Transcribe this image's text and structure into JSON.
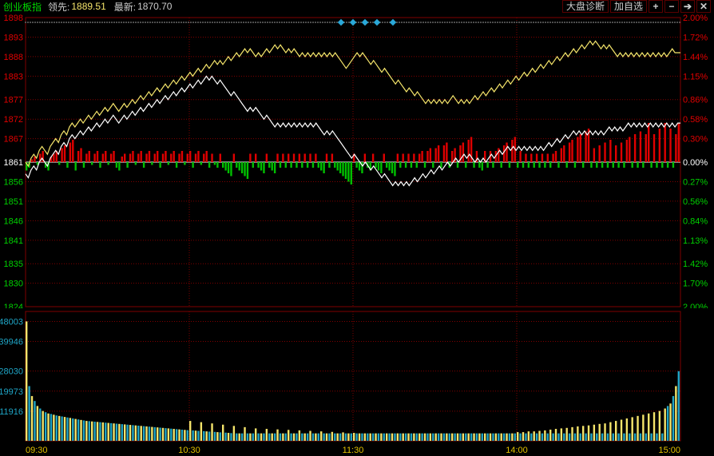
{
  "header": {
    "index_name": "创业板指",
    "lead_label": "领先:",
    "lead_value": "1889.51",
    "latest_label": "最新:",
    "latest_value": "1870.70",
    "diag_button": "大盘诊断",
    "add_button": "加自选"
  },
  "colors": {
    "background": "#000000",
    "grid": "#800000",
    "border": "#800000",
    "line_lead": "#f5e56b",
    "line_latest": "#ffffff",
    "up_bar": "#e00000",
    "down_bar": "#00c000",
    "vol_bar_a": "#f5e56b",
    "vol_bar_b": "#1fa6c7",
    "zero_line": "#ffffff"
  },
  "price_axis": {
    "left_labels": [
      "1898",
      "1893",
      "1888",
      "1883",
      "1877",
      "1872",
      "1867",
      "1861",
      "1856",
      "1851",
      "1846",
      "1841",
      "1835",
      "1830",
      "1824"
    ],
    "left_values": [
      1898,
      1893,
      1888,
      1883,
      1877,
      1872,
      1867,
      1861,
      1856,
      1851,
      1846,
      1841,
      1835,
      1830,
      1824
    ],
    "right_labels": [
      "2.00%",
      "1.72%",
      "1.44%",
      "1.15%",
      "0.86%",
      "0.58%",
      "0.30%",
      "0.00%",
      "0.27%",
      "0.56%",
      "0.84%",
      "1.13%",
      "1.42%",
      "1.70%",
      "2.00%"
    ],
    "zero_value": 1861,
    "ymin": 1824,
    "ymax": 1898
  },
  "volume_axis": {
    "labels": [
      "48003",
      "39946",
      "28030",
      "19973",
      "11916"
    ],
    "values": [
      48003,
      39946,
      28030,
      19973,
      11916
    ],
    "ymax": 52000,
    "ymin": 0
  },
  "time_axis": {
    "labels": [
      "09:30",
      "10:30",
      "11:30",
      "14:00",
      "15:00"
    ],
    "positions": [
      0,
      0.25,
      0.5,
      0.75,
      1.0
    ]
  },
  "series": {
    "n": 240,
    "lead": [
      1861,
      1860,
      1862,
      1863,
      1862,
      1864,
      1865,
      1864,
      1863,
      1865,
      1866,
      1867,
      1866,
      1868,
      1869,
      1868,
      1870,
      1871,
      1870,
      1871,
      1872,
      1871,
      1872,
      1873,
      1872,
      1873,
      1874,
      1873,
      1874,
      1875,
      1874,
      1875,
      1876,
      1875,
      1874,
      1875,
      1876,
      1875,
      1876,
      1877,
      1876,
      1877,
      1878,
      1877,
      1878,
      1879,
      1878,
      1879,
      1880,
      1879,
      1880,
      1881,
      1880,
      1881,
      1882,
      1881,
      1882,
      1883,
      1882,
      1883,
      1884,
      1883,
      1884,
      1885,
      1884,
      1885,
      1886,
      1885,
      1886,
      1887,
      1886,
      1887,
      1886,
      1887,
      1888,
      1887,
      1888,
      1889,
      1888,
      1889,
      1890,
      1889,
      1890,
      1889,
      1888,
      1889,
      1888,
      1889,
      1890,
      1889,
      1890,
      1891,
      1890,
      1891,
      1890,
      1889,
      1890,
      1889,
      1890,
      1889,
      1888,
      1889,
      1888,
      1889,
      1888,
      1889,
      1888,
      1889,
      1888,
      1889,
      1888,
      1889,
      1888,
      1889,
      1888,
      1887,
      1886,
      1885,
      1886,
      1887,
      1888,
      1889,
      1888,
      1889,
      1888,
      1887,
      1886,
      1887,
      1886,
      1885,
      1884,
      1885,
      1884,
      1883,
      1882,
      1881,
      1882,
      1881,
      1880,
      1879,
      1880,
      1879,
      1878,
      1879,
      1878,
      1877,
      1876,
      1877,
      1876,
      1877,
      1876,
      1877,
      1876,
      1877,
      1876,
      1877,
      1878,
      1877,
      1876,
      1877,
      1876,
      1877,
      1876,
      1877,
      1878,
      1877,
      1878,
      1879,
      1878,
      1879,
      1880,
      1879,
      1880,
      1881,
      1880,
      1881,
      1882,
      1881,
      1882,
      1883,
      1882,
      1883,
      1884,
      1883,
      1884,
      1885,
      1884,
      1885,
      1886,
      1885,
      1886,
      1887,
      1886,
      1887,
      1888,
      1887,
      1888,
      1889,
      1888,
      1889,
      1890,
      1889,
      1890,
      1891,
      1890,
      1891,
      1892,
      1891,
      1892,
      1891,
      1890,
      1891,
      1890,
      1891,
      1890,
      1889,
      1888,
      1889,
      1888,
      1889,
      1888,
      1889,
      1888,
      1889,
      1888,
      1889,
      1888,
      1889,
      1888,
      1889,
      1888,
      1889,
      1888,
      1889,
      1888,
      1889,
      1890,
      1889,
      1889,
      1889
    ],
    "latest": [
      1858,
      1857,
      1859,
      1860,
      1859,
      1861,
      1862,
      1861,
      1860,
      1862,
      1863,
      1864,
      1863,
      1865,
      1866,
      1865,
      1867,
      1868,
      1867,
      1868,
      1869,
      1868,
      1869,
      1870,
      1869,
      1870,
      1871,
      1870,
      1871,
      1872,
      1871,
      1872,
      1873,
      1872,
      1871,
      1872,
      1873,
      1872,
      1873,
      1874,
      1873,
      1874,
      1875,
      1874,
      1875,
      1876,
      1875,
      1876,
      1877,
      1876,
      1877,
      1878,
      1877,
      1878,
      1879,
      1878,
      1879,
      1880,
      1879,
      1880,
      1881,
      1880,
      1881,
      1882,
      1881,
      1882,
      1883,
      1882,
      1883,
      1882,
      1881,
      1882,
      1881,
      1880,
      1879,
      1878,
      1879,
      1878,
      1877,
      1876,
      1875,
      1874,
      1875,
      1874,
      1875,
      1874,
      1873,
      1872,
      1873,
      1872,
      1871,
      1870,
      1871,
      1870,
      1871,
      1870,
      1871,
      1870,
      1871,
      1870,
      1871,
      1870,
      1871,
      1870,
      1871,
      1870,
      1871,
      1870,
      1869,
      1868,
      1869,
      1868,
      1869,
      1868,
      1867,
      1866,
      1865,
      1864,
      1863,
      1862,
      1863,
      1862,
      1861,
      1860,
      1861,
      1860,
      1859,
      1860,
      1859,
      1858,
      1857,
      1858,
      1857,
      1856,
      1855,
      1856,
      1855,
      1856,
      1855,
      1856,
      1855,
      1856,
      1857,
      1856,
      1857,
      1858,
      1857,
      1858,
      1859,
      1858,
      1859,
      1860,
      1859,
      1860,
      1861,
      1860,
      1861,
      1862,
      1861,
      1862,
      1863,
      1862,
      1863,
      1862,
      1861,
      1862,
      1861,
      1862,
      1861,
      1862,
      1863,
      1862,
      1863,
      1864,
      1863,
      1864,
      1865,
      1864,
      1865,
      1864,
      1865,
      1864,
      1865,
      1864,
      1865,
      1864,
      1865,
      1864,
      1865,
      1864,
      1865,
      1866,
      1865,
      1866,
      1867,
      1866,
      1867,
      1868,
      1867,
      1868,
      1869,
      1868,
      1869,
      1868,
      1869,
      1868,
      1869,
      1868,
      1869,
      1868,
      1869,
      1868,
      1869,
      1870,
      1869,
      1870,
      1869,
      1870,
      1869,
      1870,
      1871,
      1870,
      1871,
      1870,
      1871,
      1870,
      1871,
      1870,
      1871,
      1870,
      1871,
      1870,
      1871,
      1870,
      1871,
      1870,
      1871,
      1870,
      1871,
      1871
    ]
  },
  "osc_bars": {
    "values": [
      -3,
      -2,
      1,
      2,
      -1,
      3,
      4,
      -2,
      -3,
      2,
      3,
      4,
      -1,
      5,
      6,
      -2,
      7,
      8,
      -3,
      4,
      5,
      -2,
      3,
      4,
      -1,
      3,
      4,
      -2,
      3,
      4,
      -1,
      3,
      4,
      -2,
      -3,
      2,
      3,
      -2,
      3,
      4,
      -1,
      3,
      4,
      -2,
      3,
      4,
      -1,
      3,
      4,
      -2,
      3,
      4,
      -1,
      3,
      4,
      -2,
      3,
      4,
      -1,
      3,
      4,
      -2,
      3,
      4,
      -1,
      3,
      4,
      -2,
      3,
      -1,
      -2,
      3,
      -2,
      -3,
      -4,
      -5,
      3,
      -2,
      -3,
      -4,
      -5,
      -6,
      3,
      -2,
      3,
      -2,
      -3,
      -4,
      3,
      -2,
      -3,
      -4,
      3,
      -2,
      3,
      -2,
      3,
      -2,
      3,
      -2,
      3,
      -2,
      3,
      -2,
      3,
      -2,
      3,
      -2,
      -3,
      -4,
      3,
      -2,
      3,
      -2,
      -3,
      -4,
      -5,
      -6,
      -7,
      -8,
      3,
      -2,
      -3,
      -4,
      3,
      -2,
      -3,
      3,
      -2,
      -3,
      -4,
      3,
      -2,
      -3,
      -4,
      -5,
      3,
      -2,
      3,
      -2,
      3,
      -2,
      3,
      -2,
      3,
      4,
      -2,
      4,
      5,
      -2,
      5,
      6,
      -2,
      6,
      7,
      -2,
      4,
      5,
      -2,
      6,
      7,
      -2,
      8,
      9,
      -2,
      4,
      -2,
      -3,
      4,
      -2,
      4,
      -2,
      4,
      5,
      -2,
      6,
      7,
      -2,
      8,
      9,
      -2,
      4,
      -2,
      3,
      -2,
      3,
      -2,
      3,
      -2,
      3,
      -2,
      3,
      -2,
      3,
      4,
      -2,
      5,
      6,
      -2,
      7,
      8,
      -2,
      9,
      10,
      -2,
      11,
      12,
      -2,
      5,
      -2,
      6,
      -2,
      7,
      -2,
      8,
      -2,
      6,
      -2,
      7,
      -2,
      8,
      9,
      -2,
      10,
      -2,
      11,
      -2,
      10,
      14,
      -2,
      10,
      -2,
      12,
      -2,
      14,
      -2,
      12,
      -2,
      10,
      14
    ]
  },
  "volume": {
    "values": [
      48003,
      22000,
      18000,
      16000,
      14000,
      13000,
      12000,
      11500,
      11000,
      10800,
      10500,
      10200,
      10000,
      9800,
      9600,
      9400,
      9200,
      9000,
      8800,
      8600,
      8400,
      8200,
      8000,
      7900,
      7800,
      7700,
      7600,
      7500,
      7400,
      7300,
      7200,
      7100,
      7000,
      6900,
      6800,
      6700,
      6600,
      6500,
      6400,
      6300,
      6200,
      6100,
      6000,
      5900,
      5800,
      5700,
      5600,
      5500,
      5400,
      5300,
      5200,
      5100,
      5000,
      4900,
      4800,
      4700,
      4600,
      4500,
      4400,
      4300,
      8000,
      4200,
      4100,
      4000,
      7500,
      3900,
      3800,
      3700,
      7000,
      3600,
      3500,
      3400,
      6500,
      3300,
      3200,
      3100,
      6000,
      3000,
      3000,
      3000,
      5500,
      3000,
      3000,
      3000,
      5000,
      3000,
      3000,
      3000,
      4800,
      3000,
      3000,
      3000,
      4600,
      3000,
      3000,
      3000,
      4400,
      3000,
      3000,
      3000,
      4200,
      3000,
      3000,
      3000,
      4000,
      3000,
      3000,
      3000,
      3800,
      3000,
      3000,
      3000,
      3600,
      3000,
      3000,
      3000,
      3400,
      3000,
      3000,
      3000,
      3200,
      3000,
      3000,
      3000,
      3000,
      3000,
      3000,
      3000,
      3000,
      3000,
      3000,
      3000,
      3000,
      3000,
      3000,
      3000,
      3000,
      3000,
      3000,
      3000,
      3000,
      3000,
      3000,
      3000,
      3000,
      3000,
      3000,
      3000,
      3000,
      3000,
      3000,
      3000,
      3000,
      3000,
      3000,
      3000,
      3000,
      3000,
      3000,
      3000,
      3000,
      3000,
      3000,
      3000,
      3000,
      3000,
      3000,
      3000,
      3000,
      3000,
      3000,
      3000,
      3000,
      3000,
      3000,
      3000,
      3000,
      3000,
      3000,
      3000,
      3500,
      3000,
      3500,
      3000,
      3800,
      3000,
      3800,
      3000,
      4000,
      3000,
      4200,
      3000,
      4500,
      3000,
      4800,
      3000,
      5000,
      3000,
      5200,
      3000,
      5500,
      3000,
      5800,
      3000,
      6000,
      3000,
      6200,
      3000,
      6500,
      3000,
      6800,
      3000,
      7000,
      3000,
      7500,
      3000,
      8000,
      3000,
      8500,
      3000,
      9000,
      3000,
      9500,
      3000,
      10000,
      3000,
      10500,
      3000,
      11000,
      3000,
      11500,
      3000,
      12000,
      3000,
      13000,
      14000,
      15000,
      18000,
      22000,
      28000
    ]
  }
}
